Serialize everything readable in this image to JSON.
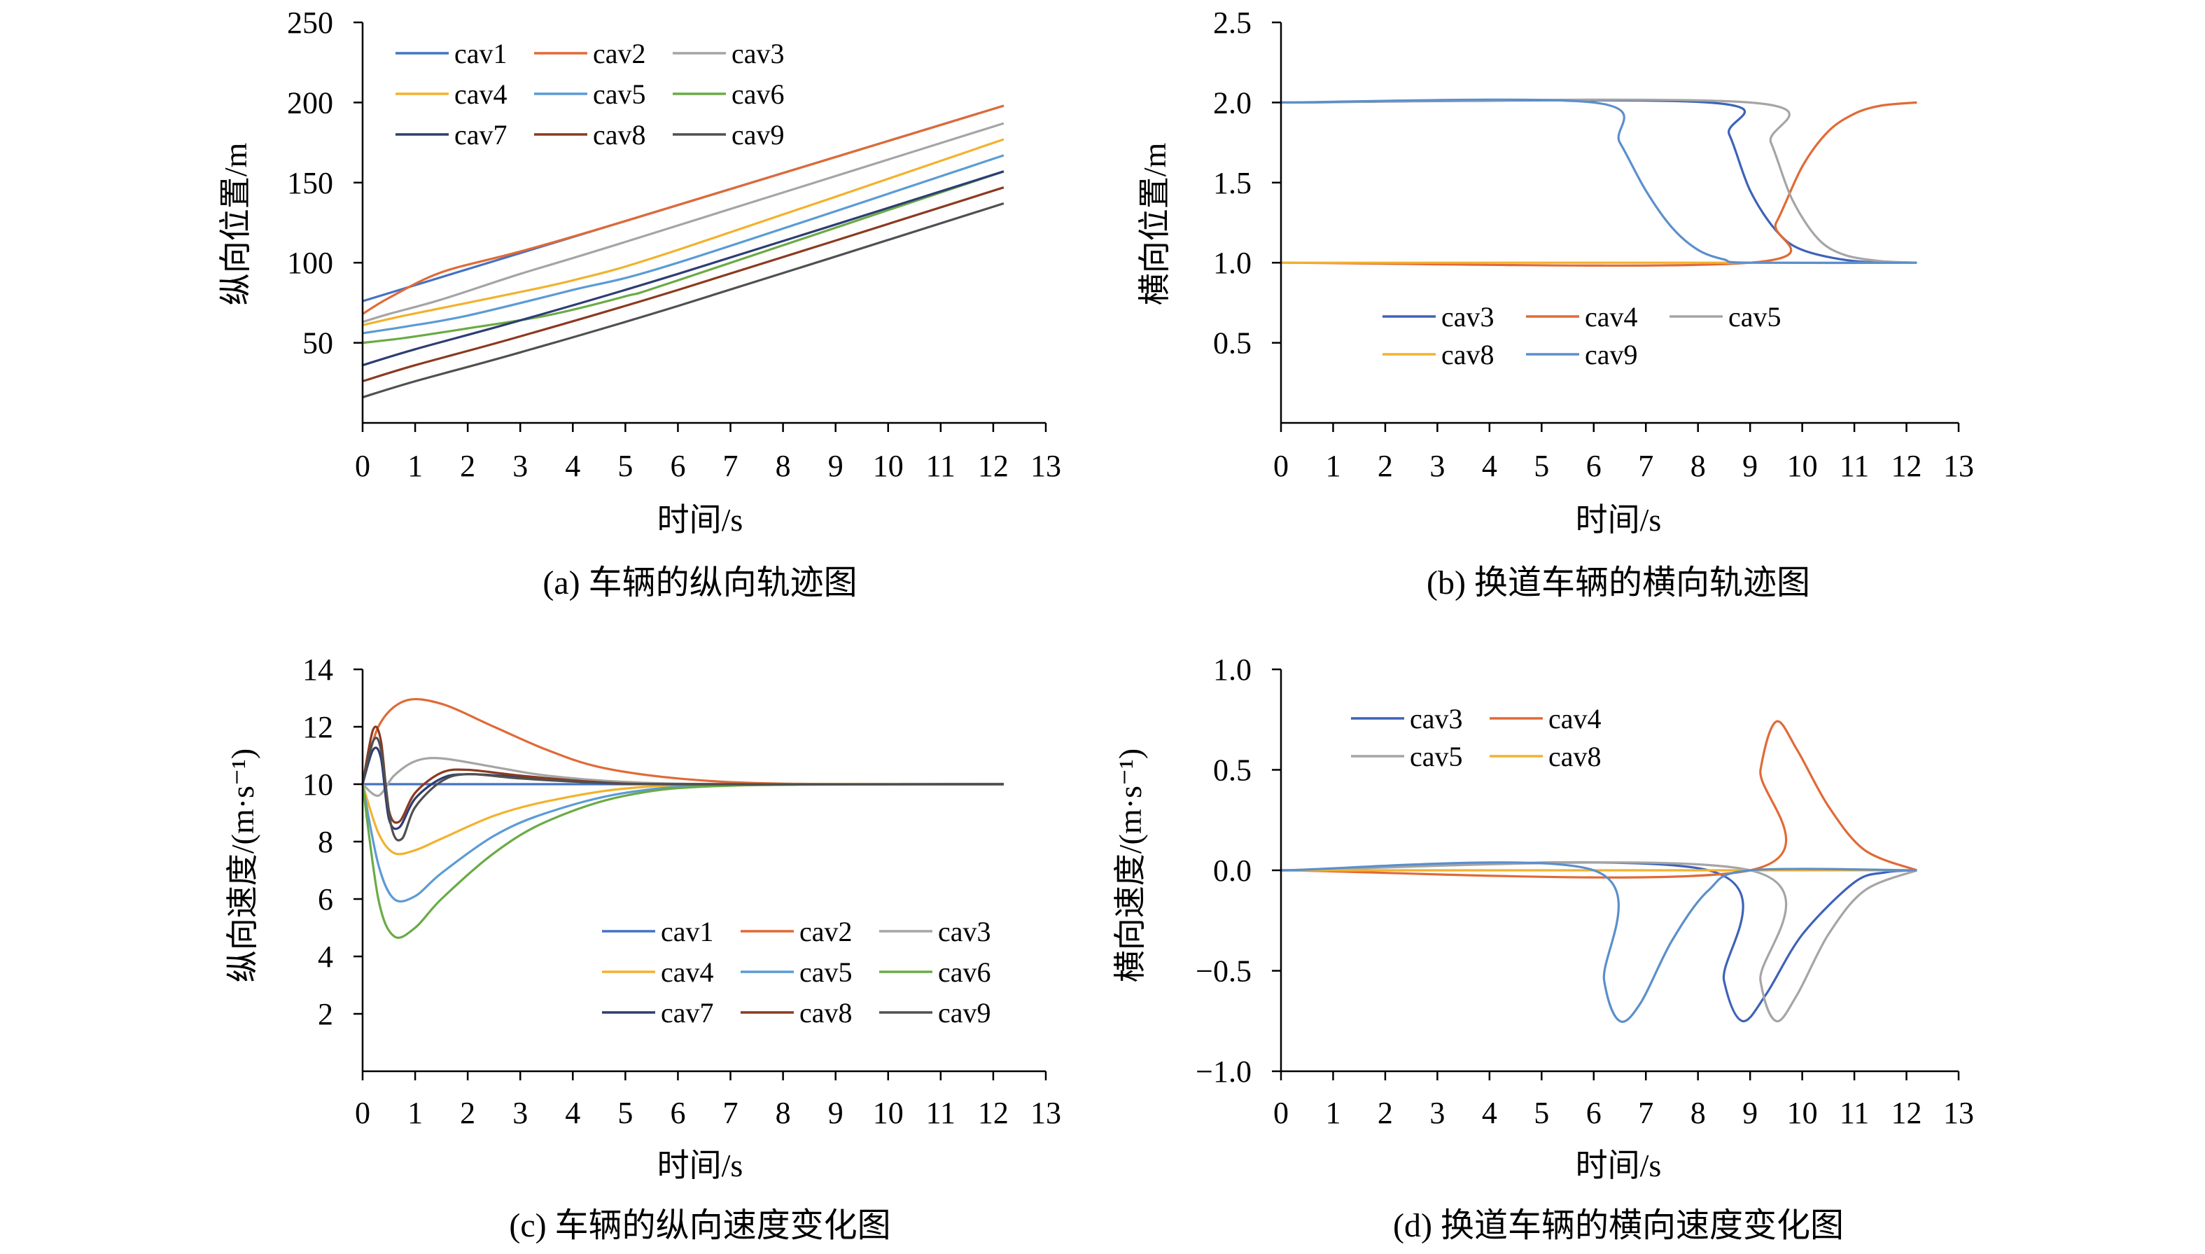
{
  "figure": {
    "colors": {
      "cav1": "#4472C4",
      "cav2": "#E06A36",
      "cav3": "#A5A5A5",
      "cav4": "#F2B22E",
      "cav5": "#5B9BD5",
      "cav6": "#6AAB45",
      "cav7": "#2E3D72",
      "cav8": "#8B3A20",
      "cav9": "#505050",
      "b_cav3": "#3E62B8",
      "b_cav4": "#E06A36",
      "b_cav5": "#A5A5A5",
      "b_cav8": "#F2B22E",
      "b_cav9": "#5B8FCB"
    }
  },
  "chart_data": [
    {
      "id": "a",
      "type": "line",
      "caption": "(a) 车辆的纵向轨迹图",
      "xlabel": "时间/s",
      "ylabel": "纵向位置/m",
      "xlim": [
        0,
        13
      ],
      "ylim": [
        0,
        250
      ],
      "xticks": [
        "0",
        "1",
        "2",
        "3",
        "4",
        "5",
        "6",
        "7",
        "8",
        "9",
        "10",
        "11",
        "12",
        "13"
      ],
      "yticks": [
        "50",
        "100",
        "150",
        "200",
        "250"
      ],
      "legend": [
        "cav1",
        "cav2",
        "cav3",
        "cav4",
        "cav5",
        "cav6",
        "cav7",
        "cav8",
        "cav9"
      ],
      "series": [
        {
          "name": "cav1",
          "x": [
            0,
            4,
            12.2
          ],
          "y": [
            76,
            116,
            198
          ]
        },
        {
          "name": "cav2",
          "x": [
            0,
            0.5,
            1.5,
            3,
            5,
            12.2
          ],
          "y": [
            68,
            78,
            94,
            107,
            126,
            198
          ]
        },
        {
          "name": "cav3",
          "x": [
            0,
            0.5,
            1.5,
            3,
            5,
            12.2
          ],
          "y": [
            63,
            68,
            77,
            93,
            113,
            187
          ]
        },
        {
          "name": "cav4",
          "x": [
            0,
            0.8,
            2,
            4,
            6,
            12.2
          ],
          "y": [
            61,
            67,
            75,
            89,
            108,
            177
          ]
        },
        {
          "name": "cav5",
          "x": [
            0,
            0.8,
            2,
            4,
            6,
            12.2
          ],
          "y": [
            56,
            60,
            67,
            83,
            100,
            167
          ]
        },
        {
          "name": "cav6",
          "x": [
            0,
            0.8,
            2,
            3.5,
            5,
            6,
            12.2
          ],
          "y": [
            50,
            53,
            59,
            67,
            79,
            89,
            157
          ]
        },
        {
          "name": "cav7",
          "x": [
            0,
            1,
            3,
            6,
            12.2
          ],
          "y": [
            36,
            46,
            64,
            93,
            157
          ]
        },
        {
          "name": "cav8",
          "x": [
            0,
            1,
            3,
            6,
            12.2
          ],
          "y": [
            26,
            36,
            54,
            83,
            147
          ]
        },
        {
          "name": "cav9",
          "x": [
            0,
            1,
            3,
            6,
            12.2
          ],
          "y": [
            16,
            26,
            44,
            73,
            137
          ]
        }
      ]
    },
    {
      "id": "b",
      "type": "line",
      "caption": "(b) 换道车辆的横向轨迹图",
      "xlabel": "时间/s",
      "ylabel": "横向位置/m",
      "xlim": [
        0,
        13
      ],
      "ylim": [
        0,
        2.5
      ],
      "xticks": [
        "0",
        "1",
        "2",
        "3",
        "4",
        "5",
        "6",
        "7",
        "8",
        "9",
        "10",
        "11",
        "12",
        "13"
      ],
      "yticks": [
        "0.5",
        "1.0",
        "1.5",
        "2.0",
        "2.5"
      ],
      "legend": [
        "cav3",
        "cav4",
        "cav5",
        "cav8",
        "cav9"
      ],
      "series": [
        {
          "name": "cav3",
          "x": [
            0,
            8.2,
            8.6,
            9,
            9.5,
            10,
            11,
            12.2
          ],
          "y": [
            2,
            2,
            1.8,
            1.45,
            1.2,
            1.08,
            1.01,
            1
          ]
        },
        {
          "name": "cav4",
          "x": [
            0,
            9,
            9.5,
            10,
            10.5,
            11,
            11.5,
            12.2
          ],
          "y": [
            1,
            1,
            1.25,
            1.6,
            1.82,
            1.93,
            1.98,
            2
          ]
        },
        {
          "name": "cav5",
          "x": [
            0,
            9,
            9.4,
            9.8,
            10.3,
            10.8,
            11.5,
            12.2
          ],
          "y": [
            2,
            2,
            1.75,
            1.4,
            1.15,
            1.05,
            1.01,
            1
          ]
        },
        {
          "name": "cav8",
          "x": [
            0,
            12.2
          ],
          "y": [
            1,
            1
          ]
        },
        {
          "name": "cav9",
          "x": [
            0,
            6,
            6.5,
            7,
            7.5,
            8,
            8.5,
            9,
            12.2
          ],
          "y": [
            2,
            2,
            1.75,
            1.45,
            1.22,
            1.08,
            1.02,
            1,
            1
          ]
        }
      ]
    },
    {
      "id": "c",
      "type": "line",
      "caption": "(c) 车辆的纵向速度变化图",
      "xlabel": "时间/s",
      "ylabel": "纵向速度/(m·s⁻¹)",
      "xlim": [
        0,
        13
      ],
      "ylim": [
        0,
        14
      ],
      "xticks": [
        "0",
        "1",
        "2",
        "3",
        "4",
        "5",
        "6",
        "7",
        "8",
        "9",
        "10",
        "11",
        "12",
        "13"
      ],
      "yticks": [
        "2",
        "4",
        "6",
        "8",
        "10",
        "12",
        "14"
      ],
      "legend": [
        "cav1",
        "cav2",
        "cav3",
        "cav4",
        "cav5",
        "cav6",
        "cav7",
        "cav8",
        "cav9"
      ],
      "series": [
        {
          "name": "cav1",
          "x": [
            0,
            12.2
          ],
          "y": [
            10,
            10
          ]
        },
        {
          "name": "cav2",
          "x": [
            0,
            0.3,
            0.8,
            1.5,
            2.5,
            3.5,
            4.5,
            6,
            8,
            12.2
          ],
          "y": [
            10,
            12,
            12.9,
            12.8,
            12,
            11.2,
            10.6,
            10.2,
            10.02,
            10
          ]
        },
        {
          "name": "cav3",
          "x": [
            0,
            0.3,
            0.6,
            1,
            1.5,
            2.5,
            3.5,
            5,
            7,
            12.2
          ],
          "y": [
            10,
            9.6,
            10.3,
            10.8,
            10.9,
            10.6,
            10.3,
            10.08,
            10,
            10
          ]
        },
        {
          "name": "cav4",
          "x": [
            0,
            0.3,
            0.6,
            1,
            1.5,
            2.5,
            3.5,
            5,
            7,
            12.2
          ],
          "y": [
            10,
            8.3,
            7.6,
            7.7,
            8.1,
            8.9,
            9.4,
            9.85,
            10,
            10
          ]
        },
        {
          "name": "cav5",
          "x": [
            0,
            0.3,
            0.6,
            1,
            1.5,
            2.5,
            3.5,
            5,
            7,
            12.2
          ],
          "y": [
            10,
            7.2,
            6.0,
            6.1,
            6.9,
            8.2,
            9.0,
            9.7,
            9.97,
            10
          ]
        },
        {
          "name": "cav6",
          "x": [
            0,
            0.3,
            0.6,
            1,
            1.5,
            2.5,
            3.5,
            5,
            7,
            12.2
          ],
          "y": [
            10,
            6.0,
            4.7,
            5.0,
            6.0,
            7.6,
            8.7,
            9.6,
            9.95,
            10
          ]
        },
        {
          "name": "cav7",
          "x": [
            0,
            0.2,
            0.35,
            0.5,
            0.7,
            1,
            1.5,
            2,
            3,
            4.5,
            6,
            12.2
          ],
          "y": [
            10,
            11.2,
            10.9,
            8.8,
            8.5,
            9.5,
            10.2,
            10.35,
            10.25,
            10.05,
            10,
            10
          ]
        },
        {
          "name": "cav8",
          "x": [
            0,
            0.2,
            0.35,
            0.5,
            0.7,
            1,
            1.5,
            2,
            3,
            4.5,
            6,
            12.2
          ],
          "y": [
            10,
            11.9,
            11.5,
            9.1,
            8.7,
            9.7,
            10.4,
            10.5,
            10.3,
            10.07,
            10,
            10
          ]
        },
        {
          "name": "cav9",
          "x": [
            0,
            0.2,
            0.35,
            0.55,
            0.75,
            1,
            1.5,
            2,
            3,
            4.5,
            6,
            12.2
          ],
          "y": [
            10,
            11.5,
            11.2,
            8.5,
            8.1,
            9.2,
            10.1,
            10.35,
            10.2,
            10.05,
            10,
            10
          ]
        }
      ]
    },
    {
      "id": "d",
      "type": "line",
      "caption": "(d) 换道车辆的横向速度变化图",
      "xlabel": "时间/s",
      "ylabel": "横向速度/(m·s⁻¹)",
      "xlim": [
        0,
        13
      ],
      "ylim": [
        -1.0,
        1.0
      ],
      "xticks": [
        "0",
        "1",
        "2",
        "3",
        "4",
        "5",
        "6",
        "7",
        "8",
        "9",
        "10",
        "11",
        "12",
        "13"
      ],
      "yticks": [
        "−1.0",
        "−0.5",
        "0.0",
        "0.5",
        "1.0"
      ],
      "legend": [
        "cav3",
        "cav4",
        "cav5",
        "cav8"
      ],
      "series": [
        {
          "name": "cav3",
          "x": [
            0,
            8.2,
            8.5,
            8.85,
            9.3,
            10,
            11,
            11.6,
            12.2
          ],
          "y": [
            0,
            0,
            -0.55,
            -0.75,
            -0.62,
            -0.32,
            -0.06,
            -0.01,
            0
          ]
        },
        {
          "name": "cav4",
          "x": [
            0,
            9,
            9.2,
            9.5,
            9.9,
            10.5,
            11.2,
            12.2
          ],
          "y": [
            0,
            0,
            0.5,
            0.74,
            0.6,
            0.32,
            0.1,
            0
          ]
        },
        {
          "name": "cav5",
          "x": [
            0,
            9,
            9.2,
            9.5,
            9.9,
            10.5,
            11.2,
            12.2
          ],
          "y": [
            0,
            0,
            -0.55,
            -0.75,
            -0.62,
            -0.32,
            -0.1,
            0
          ]
        },
        {
          "name": "cav8",
          "x": [
            0,
            12.2
          ],
          "y": [
            0,
            0
          ]
        },
        {
          "name": "cav9",
          "x": [
            0,
            6,
            6.2,
            6.5,
            6.9,
            7.5,
            8.2,
            9,
            12.2
          ],
          "y": [
            0,
            0,
            -0.55,
            -0.75,
            -0.66,
            -0.35,
            -0.1,
            0,
            0
          ]
        }
      ]
    }
  ]
}
